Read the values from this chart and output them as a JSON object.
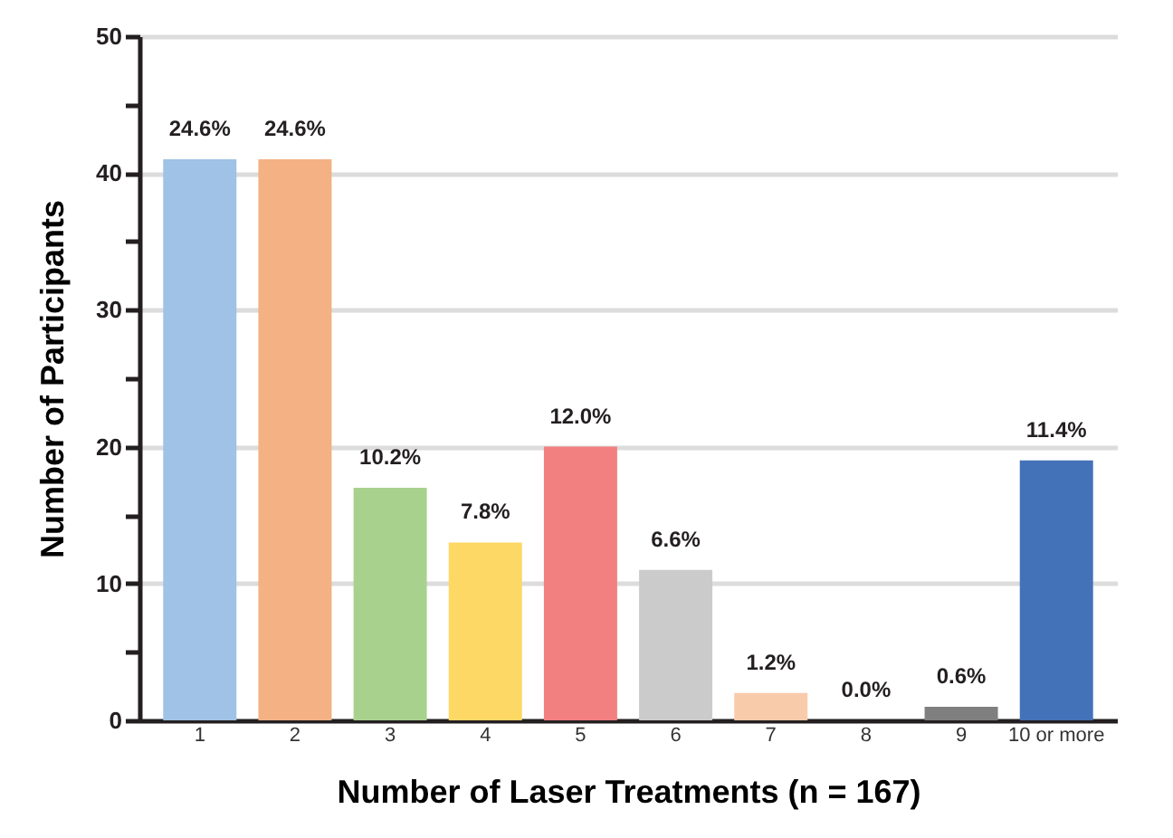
{
  "chart_data": {
    "type": "bar",
    "xlabel": "Number of Laser Treatments (n = 167)",
    "ylabel": "Number of Participants",
    "categories": [
      "1",
      "2",
      "3",
      "4",
      "5",
      "6",
      "7",
      "8",
      "9",
      "10 or more"
    ],
    "values": [
      41,
      41,
      17,
      13,
      20,
      11,
      2,
      0,
      1,
      19
    ],
    "colors": [
      "#9fc2e6",
      "#f3b184",
      "#a9d18e",
      "#fdd865",
      "#f28080",
      "#cbcbcb",
      "#f8cbab",
      "#7f7f7f",
      "#7f7f7f",
      "#4472b8"
    ],
    "annotations": [
      {
        "text": "24.6%",
        "x": "1",
        "y": 41
      },
      {
        "text": "24.6%",
        "x": "2",
        "y": 41
      },
      {
        "text": "10.2%",
        "x": "3",
        "y": 17
      },
      {
        "text": "7.8%",
        "x": "4",
        "y": 13
      },
      {
        "text": "12.0%",
        "x": "5",
        "y": 20
      },
      {
        "text": "6.6%",
        "x": "6",
        "y": 11
      },
      {
        "text": "1.2%",
        "x": "7",
        "y": 2
      },
      {
        "text": "0.0%",
        "x": "8",
        "y": 0
      },
      {
        "text": "0.6%",
        "x": "9",
        "y": 1
      },
      {
        "text": "11.4%",
        "x": "10 or more",
        "y": 19
      }
    ],
    "ylim": [
      0,
      50
    ],
    "yticks": [
      0,
      {
        "value": 5,
        "label": null
      },
      10,
      {
        "value": 15,
        "label": null
      },
      20,
      {
        "value": 25,
        "label": null
      },
      30,
      {
        "value": 35,
        "label": null
      },
      40,
      {
        "value": 45,
        "label": null
      },
      50
    ],
    "grid": "y"
  }
}
